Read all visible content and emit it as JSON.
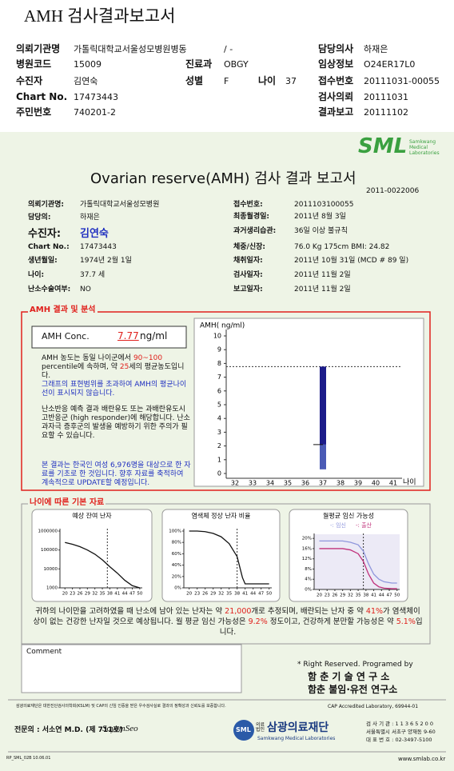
{
  "header": {
    "title": "AMH 검사결과보고서",
    "rows": [
      [
        {
          "label": "의뢰기관명",
          "value": "가톨릭대학교서울성모병원병동"
        },
        {
          "value": "/ -"
        },
        {
          "label": "담당의사",
          "value": "하재은"
        }
      ],
      [
        {
          "label": "병원코드",
          "value": "15009"
        },
        {
          "label": "진료과",
          "value": "OBGY"
        },
        {
          "label": "임상정보",
          "value": "O24ER17L0"
        }
      ],
      [
        {
          "label": "수진자",
          "value": "김연숙"
        },
        {
          "label": "성별",
          "value": "F"
        },
        {
          "label": "나이",
          "value": "37"
        },
        {
          "label": "접수번호",
          "value": "20111031-00055"
        }
      ],
      [
        {
          "label": "Chart No.",
          "value": "17473443"
        },
        {
          "label": "검사의뢰",
          "value": "20111031"
        }
      ],
      [
        {
          "label": "주민번호",
          "value": "740201-2"
        },
        {
          "label": "결과보고",
          "value": "20111102"
        }
      ]
    ]
  },
  "report": {
    "logo": "SML",
    "logo_sub": "Samkwang Medical Laboratories",
    "title": "Ovarian reserve(AMH) 검사 결과 보고서",
    "doc_no": "2011-0022006",
    "info_left": [
      {
        "label": "의뢰기관명:",
        "value": "가톨릭대학교서울성모병원"
      },
      {
        "label": "담당의:",
        "value": "하재은"
      },
      {
        "label": "수진자:",
        "value": "김연숙"
      },
      {
        "label": "Chart No.:",
        "value": "17473443"
      },
      {
        "label": "생년월일:",
        "value": "1974년 2월 1일"
      },
      {
        "label": "나이:",
        "value": "37.7 세"
      },
      {
        "label": "난소수술여부:",
        "value": "NO"
      }
    ],
    "info_right": [
      {
        "label": "접수번호:",
        "value": "2011103100055"
      },
      {
        "label": "최종월경일:",
        "value": "2011년 8월 3일"
      },
      {
        "label": "과거생리습관:",
        "value": "36일 이상 불규칙"
      },
      {
        "label": "체중/신장:",
        "value": "76.0 Kg   175cm    BMI:  24.82"
      },
      {
        "label": "채취일자:",
        "value": "2011년 10월 31일 (MCD # 89 일)"
      },
      {
        "label": "검사일자:",
        "value": "2011년 11월 2일"
      },
      {
        "label": "보고일자:",
        "value": "2011년 11월 2일"
      }
    ],
    "amh": {
      "heading": "AMH 결과 및 분석",
      "conc_label": "AMH Conc.",
      "conc_value": "7.77",
      "conc_unit": "ng/ml",
      "paragraphs": [
        [
          {
            "text": "AMH 농도는 동일 나이군에서 "
          },
          {
            "text": "90~100",
            "color": "#e0201c"
          },
          {
            "text": " percentile에 속하며, 약 "
          },
          {
            "text": "25",
            "color": "#e0201c"
          },
          {
            "text": "세의 평균농도입니다."
          }
        ],
        [
          {
            "text": "그래프의 표현범위를 초과하여 AMH의 평균나이선이 표시되지 않습니다.",
            "color": "#2030c0"
          }
        ],
        [
          {
            "text": "난소반응 예측 결과 배란유도 또는 과배란유도시 고반응군 (high responder)에 해당합니다. 난소과자극 증후군의 발생을 예방하기 위한 주의가 필요할 수 있습니다."
          }
        ],
        [
          {
            "text": "본 결과는 한국인 여성 6,976명을 대상으로 한 자료를 기초로 한 것입니다. 향후 자료를 축적하여 계속적으로 UPDATE할 예정입니다.",
            "color": "#2030c0"
          }
        ]
      ]
    },
    "amh_chart": {
      "type": "bar",
      "y_label": "AMH( ng/ml)",
      "x_label": "나이",
      "categories": [
        "32",
        "33",
        "34",
        "35",
        "36",
        "37",
        "38",
        "39",
        "40",
        "41"
      ],
      "ylim": [
        0,
        10
      ],
      "yticks": [
        0,
        1,
        2,
        3,
        4,
        5,
        6,
        7,
        8,
        9,
        10
      ],
      "reference_line": 7.77,
      "range_bars": [
        {
          "category": "37",
          "segments": [
            {
              "low": 0.3,
              "high": 2.1,
              "color": "#4a5ab5"
            },
            {
              "low": 2.1,
              "high": 7.77,
              "color": "#1c1c8a"
            }
          ]
        }
      ]
    },
    "age_section": {
      "heading": "나이에 따른 기본 자료",
      "charts": [
        {
          "type": "line",
          "title": "예상 잔여 난자",
          "log_scale": true,
          "x": [
            20,
            23,
            26,
            29,
            32,
            35,
            38,
            41,
            44,
            47,
            50
          ],
          "xlim": [
            18,
            51
          ],
          "xticks": [
            20,
            23,
            26,
            29,
            32,
            35,
            38,
            41,
            44,
            47,
            50
          ],
          "ylim": [
            1000,
            1000000
          ],
          "yticks": [
            1000,
            10000,
            100000,
            1000000
          ],
          "marker_x": 37,
          "series": [
            {
              "color": "#111111",
              "values": [
                250000,
                200000,
                150000,
                100000,
                60000,
                30000,
                13000,
                6000,
                2500,
                1300,
                1000
              ]
            }
          ]
        },
        {
          "type": "line",
          "title": "염색체 정상 난자 비율",
          "log_scale": false,
          "x": [
            20,
            23,
            26,
            29,
            32,
            35,
            38,
            40,
            41,
            44,
            47,
            50
          ],
          "xlim": [
            18,
            51
          ],
          "xticks": [
            20,
            23,
            26,
            29,
            32,
            35,
            38,
            41,
            44,
            47,
            50
          ],
          "ylim": [
            0,
            100
          ],
          "yticks": [
            {
              "value": 0,
              "label": "0%"
            },
            {
              "value": 20,
              "label": "20%"
            },
            {
              "value": 40,
              "label": "40%"
            },
            {
              "value": 60,
              "label": "60%"
            },
            {
              "value": 80,
              "label": "80%"
            },
            {
              "value": 100,
              "label": "100%"
            }
          ],
          "marker_x": 38,
          "series": [
            {
              "color": "#111111",
              "values": [
                100,
                100,
                99,
                96,
                90,
                78,
                55,
                18,
                7,
                7,
                7,
                7
              ]
            }
          ]
        },
        {
          "type": "line",
          "title": "월평균 임신 가능성",
          "log_scale": false,
          "x": [
            20,
            23,
            26,
            29,
            32,
            35,
            37,
            39,
            41,
            43,
            45,
            48,
            50
          ],
          "xlim": [
            18,
            51
          ],
          "xticks": [
            20,
            23,
            26,
            29,
            32,
            35,
            38,
            41,
            44,
            47,
            50
          ],
          "ylim": [
            0,
            21
          ],
          "yticks": [
            {
              "value": 0,
              "label": "0%"
            },
            {
              "value": 4,
              "label": "4%"
            },
            {
              "value": 8,
              "label": "8%"
            },
            {
              "value": 12,
              "label": "12%"
            },
            {
              "value": 16,
              "label": "16%"
            },
            {
              "value": 20,
              "label": "20%"
            }
          ],
          "marker_x": 37,
          "series": [
            {
              "name": "-: 임신",
              "color": "#8f96dc",
              "values": [
                19,
                19,
                19,
                19,
                18.5,
                17.5,
                15,
                10,
                6,
                4,
                3,
                2.5,
                2.5
              ]
            },
            {
              "name": "-: 출산",
              "color": "#c0307a",
              "values": [
                16,
                16,
                16,
                16,
                15.5,
                14,
                11,
                6,
                2.5,
                1,
                0.5,
                0.3,
                0.3
              ]
            }
          ]
        }
      ],
      "summary": [
        {
          "text": "귀하의 나이만을 고려하였을 때 난소에 남아 있는 난자는 약 "
        },
        {
          "text": "21,000",
          "color": "#e0201c"
        },
        {
          "text": "개로 추정되며, 배란되는 난자 중 약 "
        },
        {
          "text": "41%",
          "color": "#e0201c"
        },
        {
          "text": "가 염색체이상이 없는 건강한 난자일 것으로 예상됩니다. 월 평균 임신 가능성은 "
        },
        {
          "text": "9.2%",
          "color": "#e0201c"
        },
        {
          "text": " 정도이고, 건강하게 분만할 가능성은 약 "
        },
        {
          "text": "5.1%",
          "color": "#e0201c"
        },
        {
          "text": "입니다."
        }
      ]
    },
    "comment": {
      "label": "Comment"
    },
    "credits": [
      "* Right Reserved. Programed by",
      "함 춘 기 술 연 구 소",
      "함춘 불임·유전 연구소"
    ],
    "footer": {
      "notice": "삼광의료재단은 대한진단검사의학회(KSLM) 및 CAP의 신임 인증을 받은 우수검사실로 결과의 정확성과 신뢰도를 보증합니다.",
      "cap": "CAP Accredited Laboratory, 69944-01",
      "doctor": "전문의 : 서소연 M.D. (제 711호)",
      "signature": "SoyemSeo",
      "org_prefix": "의료법인",
      "org": "삼광의료재단",
      "org_sub": "Samkwang Medical Laboratories",
      "contacts": [
        "검 사 기 관 : 1 1 3 6 5 2 0 0",
        "서울특별시 서초구 양재동 9-60",
        "대 표 번 호 : 02-3497-5100"
      ],
      "form_code": "RP_SML_02B 10.06.01",
      "website": "www.smlab.co.kr"
    }
  }
}
